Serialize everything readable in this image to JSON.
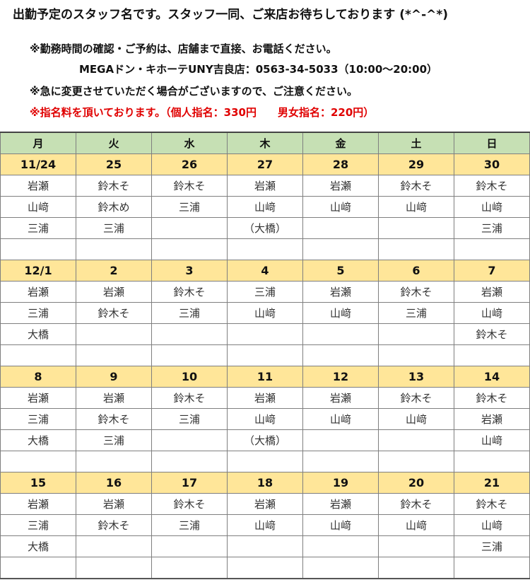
{
  "header": {
    "title": "出勤予定のスタッフ名です。スタッフ一同、ご来店お待ちしております (*^-^*)",
    "note1": "※勤務時間の確認・ご予約は、店舗まで直接、お電話ください。",
    "store": "MEGAドン・キホーテUNY吉良店：0563-34-5033（10:00～20:00）",
    "note2": "※急に変更させていただく場合がございますので、ご注意ください。",
    "note3": "※指名料を頂いております。（個人指名：330円　　男女指名：220円）"
  },
  "days": [
    "月",
    "火",
    "水",
    "木",
    "金",
    "土",
    "日"
  ],
  "weeks": [
    {
      "dates": [
        "11/24",
        "25",
        "26",
        "27",
        "28",
        "29",
        "30"
      ],
      "rows": [
        [
          "岩瀬",
          "鈴木そ",
          "鈴木そ",
          "岩瀬",
          "岩瀬",
          "鈴木そ",
          "鈴木そ"
        ],
        [
          "山﨑",
          "鈴木め",
          "三浦",
          "山﨑",
          "山﨑",
          "山﨑",
          "山﨑"
        ],
        [
          "三浦",
          "三浦",
          "",
          "（大橋）",
          "",
          "",
          "三浦"
        ],
        [
          "",
          "",
          "",
          "",
          "",
          "",
          ""
        ]
      ]
    },
    {
      "dates": [
        "12/1",
        "2",
        "3",
        "4",
        "5",
        "6",
        "7"
      ],
      "rows": [
        [
          "岩瀬",
          "岩瀬",
          "鈴木そ",
          "三浦",
          "岩瀬",
          "鈴木そ",
          "岩瀬"
        ],
        [
          "三浦",
          "鈴木そ",
          "三浦",
          "山﨑",
          "山﨑",
          "三浦",
          "山﨑"
        ],
        [
          "大橋",
          "",
          "",
          "",
          "",
          "",
          "鈴木そ"
        ],
        [
          "",
          "",
          "",
          "",
          "",
          "",
          ""
        ]
      ]
    },
    {
      "dates": [
        "8",
        "9",
        "10",
        "11",
        "12",
        "13",
        "14"
      ],
      "rows": [
        [
          "岩瀬",
          "岩瀬",
          "鈴木そ",
          "岩瀬",
          "岩瀬",
          "鈴木そ",
          "鈴木そ"
        ],
        [
          "三浦",
          "鈴木そ",
          "三浦",
          "山﨑",
          "山﨑",
          "山﨑",
          "岩瀬"
        ],
        [
          "大橋",
          "三浦",
          "",
          "（大橋）",
          "",
          "",
          "山﨑"
        ],
        [
          "",
          "",
          "",
          "",
          "",
          "",
          ""
        ]
      ]
    },
    {
      "dates": [
        "15",
        "16",
        "17",
        "18",
        "19",
        "20",
        "21"
      ],
      "rows": [
        [
          "岩瀬",
          "岩瀬",
          "鈴木そ",
          "岩瀬",
          "岩瀬",
          "鈴木そ",
          "鈴木そ"
        ],
        [
          "三浦",
          "鈴木そ",
          "三浦",
          "山﨑",
          "山﨑",
          "山﨑",
          "山﨑"
        ],
        [
          "大橋",
          "",
          "",
          "",
          "",
          "",
          "三浦"
        ],
        [
          "",
          "",
          "",
          "",
          "",
          "",
          ""
        ]
      ]
    }
  ]
}
